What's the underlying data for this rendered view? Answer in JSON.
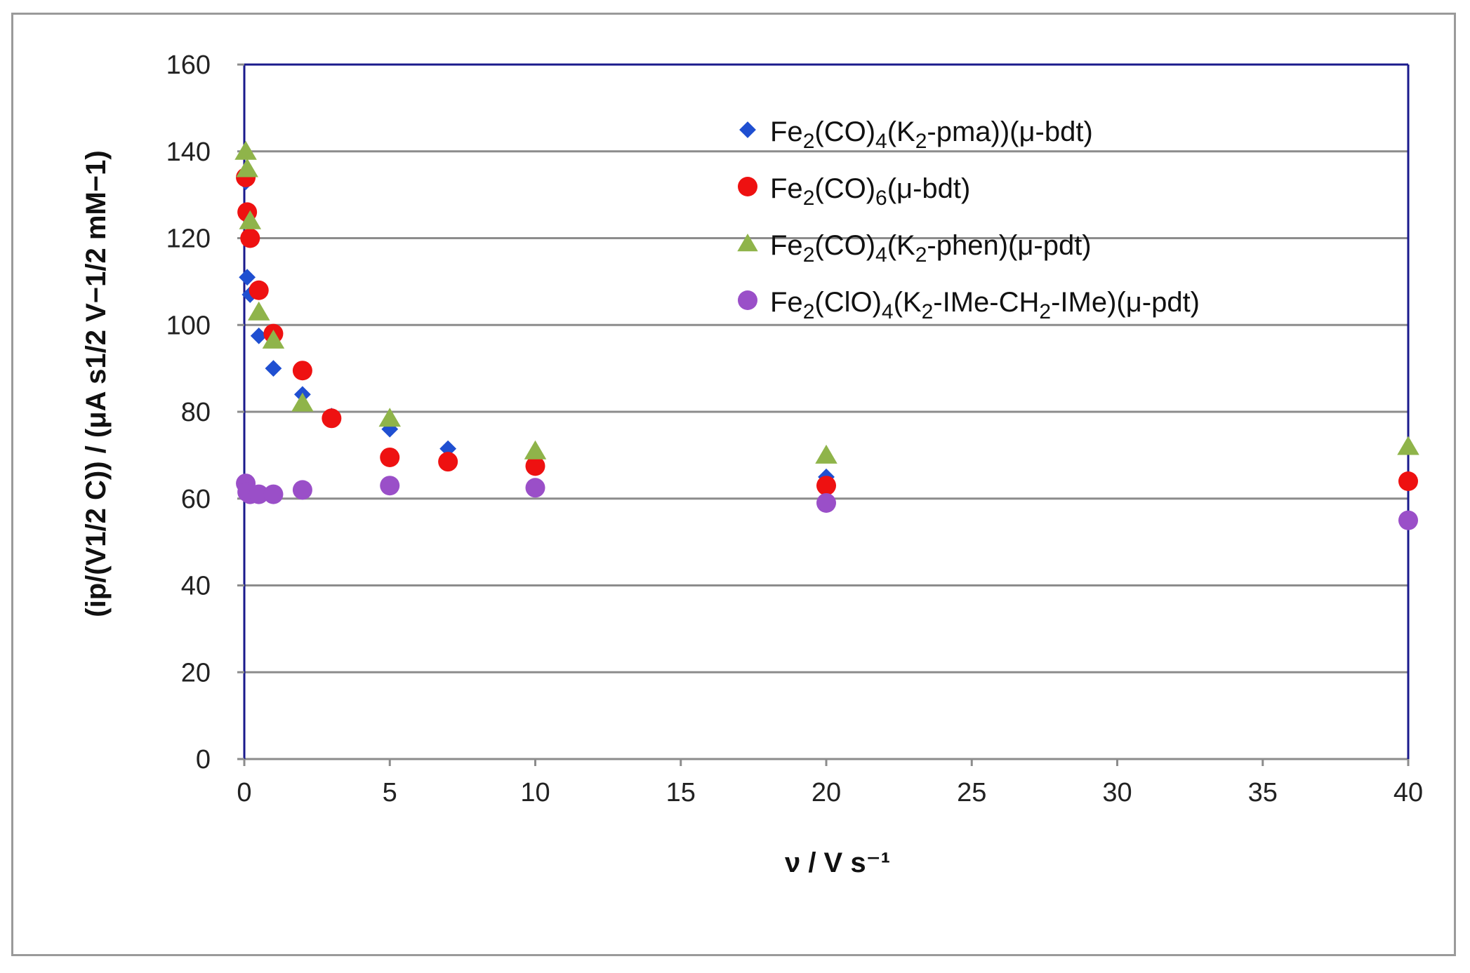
{
  "chart_data": {
    "type": "scatter",
    "title": "",
    "xlabel": "ν / V s⁻¹",
    "ylabel": "(ip/(V1/2 C)) / (μA s1/2 V−1/2 mM−1)",
    "xlim": [
      0,
      40
    ],
    "ylim": [
      0,
      160
    ],
    "xticks": [
      0,
      5,
      10,
      15,
      20,
      25,
      30,
      35,
      40
    ],
    "yticks": [
      0,
      20,
      40,
      60,
      80,
      100,
      120,
      140,
      160
    ],
    "grid": true,
    "legend_position": "top-right",
    "series": [
      {
        "name": "Fe2(CO)4(K2-pma))(μ-bdt)",
        "marker": "diamond",
        "color": "#1f4fd1",
        "x": [
          0.05,
          0.1,
          0.2,
          0.5,
          1,
          2,
          3,
          5,
          7,
          10,
          20,
          40
        ],
        "y": [
          133,
          111,
          107,
          97.5,
          90,
          84,
          79,
          76,
          71.5,
          70,
          65,
          64
        ]
      },
      {
        "name": "Fe2(CO)6(μ-bdt)",
        "marker": "circle",
        "color": "#ee1111",
        "x": [
          0.05,
          0.1,
          0.2,
          0.5,
          1,
          2,
          3,
          5,
          7,
          10,
          20,
          40
        ],
        "y": [
          134,
          126,
          120,
          108,
          98,
          89.5,
          78.5,
          69.5,
          68.5,
          67.5,
          63,
          64
        ]
      },
      {
        "name": "Fe2(CO)4(K2-phen)(μ-pdt)",
        "marker": "triangle",
        "color": "#8fb44a",
        "x": [
          0.05,
          0.1,
          0.2,
          0.5,
          1,
          2,
          5,
          10,
          20,
          40
        ],
        "y": [
          140,
          136,
          124,
          103,
          96.5,
          82,
          78.5,
          71,
          70,
          72
        ]
      },
      {
        "name": "Fe2(ClO)4(K2-IMe-CH2-IMe)(μ-pdt)",
        "marker": "circle",
        "color": "#9a4fc8",
        "x": [
          0.05,
          0.1,
          0.2,
          0.5,
          1,
          2,
          5,
          10,
          20,
          40
        ],
        "y": [
          63.5,
          61.5,
          61,
          61,
          61,
          62,
          63,
          62.5,
          59,
          55
        ]
      }
    ],
    "legend_entries": [
      {
        "base": "Fe",
        "sub1": "2",
        "mid": "(CO)",
        "sub2": "4",
        "tail1": "(K",
        "sub3": "2",
        "tail2": "-pma))(μ-bdt)"
      },
      {
        "base": "Fe",
        "sub1": "2",
        "mid": "(CO)",
        "sub2": "6",
        "tail1": "(μ-bdt)",
        "sub3": "",
        "tail2": ""
      },
      {
        "base": "Fe",
        "sub1": "2",
        "mid": "(CO)",
        "sub2": "4",
        "tail1": "(K",
        "sub3": "2",
        "tail2": "-phen)(μ-pdt)"
      },
      {
        "base": "Fe",
        "sub1": "2",
        "mid": "(ClO)",
        "sub2": "4",
        "tail1": "(K",
        "sub3": "2",
        "tail2": "-IMe-CH",
        "sub4": "2",
        "tail3": "-IMe)(μ-pdt)"
      }
    ],
    "colors": {
      "plot_border": "#1a1a8c",
      "grid": "#8c8c8c",
      "axis": "#8c8c8c"
    }
  }
}
